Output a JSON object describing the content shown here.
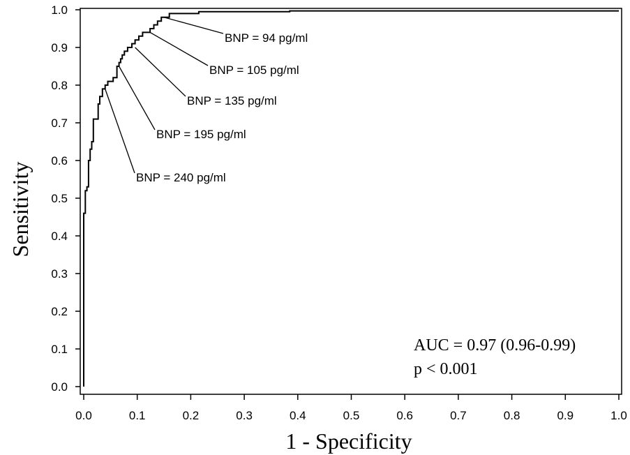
{
  "chart_data": {
    "type": "line",
    "title": "",
    "xlabel": "1 - Specificity",
    "ylabel": "Sensitivity",
    "xlim": [
      0.0,
      1.0
    ],
    "ylim": [
      0.0,
      1.0
    ],
    "x_ticks": [
      "0.0",
      "0.1",
      "0.2",
      "0.3",
      "0.4",
      "0.5",
      "0.6",
      "0.7",
      "0.8",
      "0.9",
      "1.0"
    ],
    "y_ticks": [
      "0.0",
      "0.1",
      "0.2",
      "0.3",
      "0.4",
      "0.5",
      "0.6",
      "0.7",
      "0.8",
      "0.9",
      "1.0"
    ],
    "grid": false,
    "legend": "none",
    "series": [
      {
        "x": [
          0.0,
          0.0,
          0.003,
          0.003,
          0.006,
          0.006,
          0.009,
          0.009,
          0.012,
          0.012,
          0.015,
          0.015,
          0.018,
          0.018,
          0.021,
          0.021,
          0.027,
          0.027,
          0.03,
          0.03,
          0.035,
          0.035,
          0.04,
          0.04,
          0.045,
          0.045,
          0.055,
          0.055,
          0.062,
          0.062,
          0.066,
          0.066,
          0.069,
          0.069,
          0.072,
          0.072,
          0.076,
          0.076,
          0.082,
          0.082,
          0.09,
          0.09,
          0.096,
          0.096,
          0.103,
          0.103,
          0.11,
          0.11,
          0.117,
          0.117,
          0.124,
          0.124,
          0.131,
          0.131,
          0.138,
          0.138,
          0.145,
          0.145,
          0.15,
          0.15,
          0.16,
          0.16,
          0.215,
          0.215,
          0.385,
          0.385,
          1.0
        ],
        "y": [
          0.0,
          0.46,
          0.46,
          0.52,
          0.52,
          0.53,
          0.53,
          0.6,
          0.6,
          0.63,
          0.63,
          0.65,
          0.65,
          0.71,
          0.71,
          0.71,
          0.71,
          0.75,
          0.75,
          0.77,
          0.77,
          0.79,
          0.79,
          0.8,
          0.8,
          0.81,
          0.81,
          0.82,
          0.82,
          0.85,
          0.85,
          0.86,
          0.86,
          0.87,
          0.87,
          0.88,
          0.88,
          0.89,
          0.89,
          0.9,
          0.9,
          0.91,
          0.91,
          0.92,
          0.92,
          0.93,
          0.93,
          0.94,
          0.94,
          0.94,
          0.94,
          0.95,
          0.95,
          0.96,
          0.96,
          0.97,
          0.97,
          0.98,
          0.98,
          0.98,
          0.98,
          0.99,
          0.99,
          0.995,
          0.995,
          0.997,
          0.997
        ]
      }
    ],
    "annotations": [
      {
        "text": "BNP = 94 pg/ml",
        "point": [
          0.15,
          0.98
        ]
      },
      {
        "text": "BNP = 105 pg/ml",
        "point": [
          0.124,
          0.94
        ]
      },
      {
        "text": "BNP = 135 pg/ml",
        "point": [
          0.096,
          0.9
        ]
      },
      {
        "text": "BNP = 195 pg/ml",
        "point": [
          0.066,
          0.85
        ]
      },
      {
        "text": "BNP = 240 pg/ml",
        "point": [
          0.04,
          0.79
        ]
      }
    ],
    "stats": [
      "AUC = 0.97 (0.96-0.99)",
      "p < 0.001"
    ]
  }
}
